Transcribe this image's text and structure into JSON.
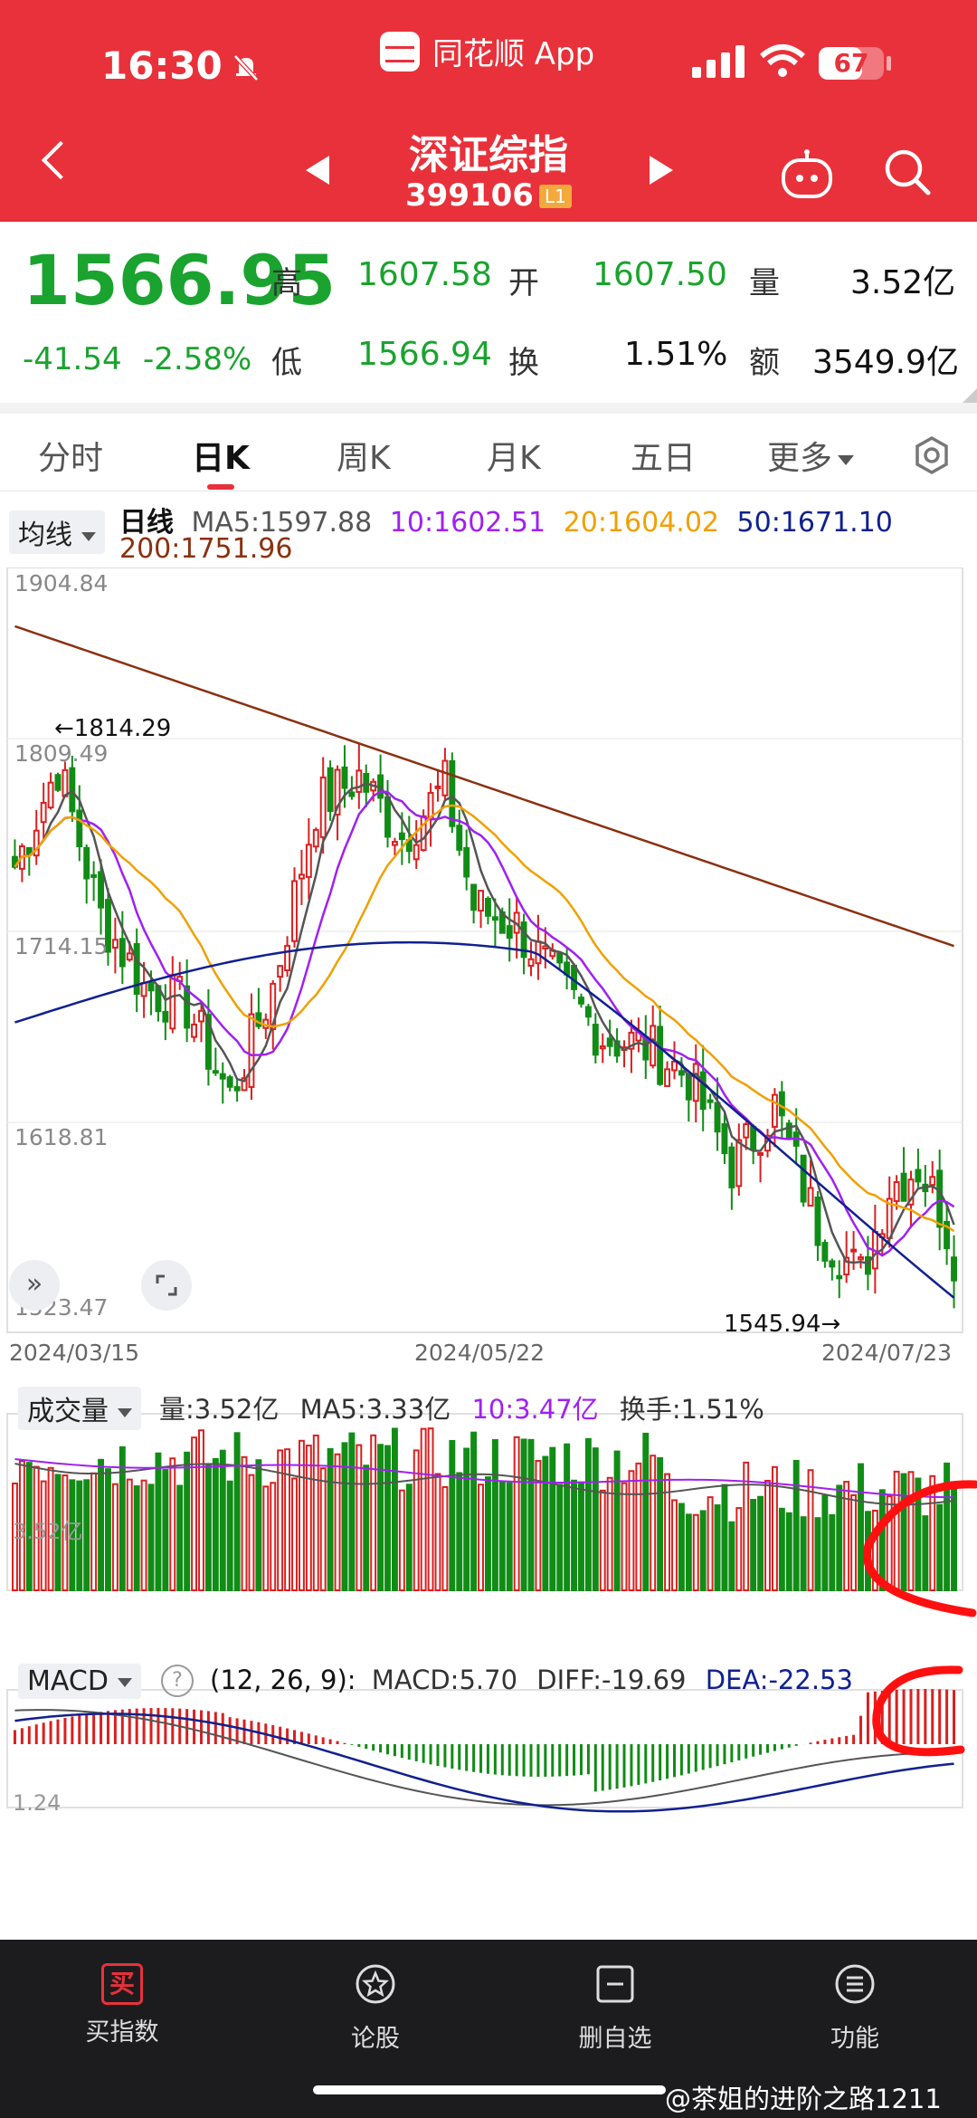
{
  "status_bar": {
    "time": "16:30",
    "app_name": "同花顺 App",
    "battery": "67",
    "battery_level": 0.67
  },
  "header": {
    "title": "深证综指",
    "code": "399106",
    "level": "L1"
  },
  "quote": {
    "price": "1566.95",
    "change": "-41.54",
    "change_pct": "-2.58%",
    "high_label": "高",
    "high": "1607.58",
    "open_label": "开",
    "open": "1607.50",
    "volume_label": "量",
    "volume": "3.52亿",
    "low_label": "低",
    "low": "1566.94",
    "turnover_label": "换",
    "turnover": "1.51%",
    "amount_label": "额",
    "amount": "3549.9亿"
  },
  "tabs": [
    {
      "label": "分时"
    },
    {
      "label": "日K"
    },
    {
      "label": "周K"
    },
    {
      "label": "月K"
    },
    {
      "label": "五日"
    },
    {
      "label": "更多"
    }
  ],
  "kline": {
    "indicator_select": "均线",
    "period": "日线",
    "ma5": "MA5:1597.88",
    "ma10": "10:1602.51",
    "ma20": "20:1604.02",
    "ma50": "50:1671.10",
    "ma200": "200:1751.96",
    "y_labels": [
      "1904.84",
      "1809.49",
      "1714.15",
      "1618.81",
      "1523.47"
    ],
    "high_marker": "←1814.29",
    "low_marker": "1545.94→",
    "dates": [
      "2024/03/15",
      "2024/05/22",
      "2024/07/23"
    ],
    "colors": {
      "ma5": "#555555",
      "ma10": "#a020f0",
      "ma20": "#f0a000",
      "ma50": "#102090",
      "ma200": "#8b3010",
      "up": "#d92020",
      "down": "#118c16"
    }
  },
  "volume_panel": {
    "indicator_select": "成交量",
    "vol": "量:3.52亿",
    "ma5": "MA5:3.33亿",
    "ma10": "10:3.47亿",
    "turnover": "换手:1.51%",
    "axis_label": "3.52亿"
  },
  "macd_panel": {
    "indicator_select": "MACD",
    "params": "(12, 26, 9):",
    "macd": "MACD:5.70",
    "diff": "DIFF:-19.69",
    "dea": "DEA:-22.53",
    "axis_label": "1.24"
  },
  "bottom_nav": [
    {
      "label": "买指数",
      "icon": "buy-icon",
      "icon_text": "买"
    },
    {
      "label": "论股",
      "icon": "star-badge-icon"
    },
    {
      "label": "删自选",
      "icon": "minus-box-icon"
    },
    {
      "label": "功能",
      "icon": "menu-icon"
    }
  ],
  "watermark": "@茶姐的进阶之路1211"
}
